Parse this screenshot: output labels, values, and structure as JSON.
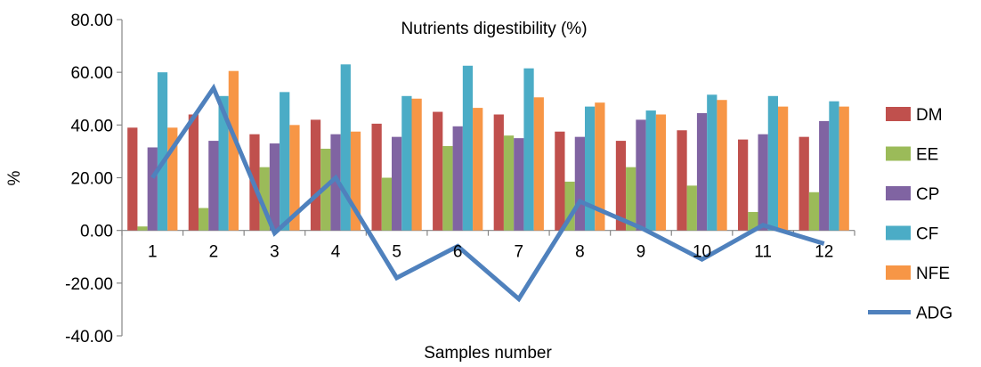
{
  "chart_data": {
    "type": "bar",
    "title": "Nutrients digestibility (%)",
    "xlabel": "Samples number",
    "ylabel": "%",
    "ylim": [
      -40,
      80
    ],
    "yticks": [
      "80.00",
      "60.00",
      "40.00",
      "20.00",
      "0.00",
      "-20.00",
      "-40.00"
    ],
    "ytick_values": [
      80,
      60,
      40,
      20,
      0,
      -20,
      -40
    ],
    "categories": [
      "1",
      "2",
      "3",
      "4",
      "5",
      "6",
      "7",
      "8",
      "9",
      "10",
      "11",
      "12"
    ],
    "grid": false,
    "legend_position": "right",
    "series": [
      {
        "name": "DM",
        "kind": "bar",
        "color": "#C0504D",
        "values": [
          39,
          44,
          36.5,
          42,
          40.5,
          45,
          44,
          37.5,
          34,
          38,
          34.5,
          35.5
        ]
      },
      {
        "name": "EE",
        "kind": "bar",
        "color": "#9BBB59",
        "values": [
          1.5,
          8.5,
          24,
          31,
          20,
          32,
          36,
          18.5,
          24,
          17,
          7,
          14.5
        ]
      },
      {
        "name": "CP",
        "kind": "bar",
        "color": "#8064A2",
        "values": [
          31.5,
          34,
          33,
          36.5,
          35.5,
          39.5,
          35,
          35.5,
          42,
          44.5,
          36.5,
          41.5
        ]
      },
      {
        "name": "CF",
        "kind": "bar",
        "color": "#4BACC6",
        "values": [
          60,
          51,
          52.5,
          63,
          51,
          62.5,
          61.5,
          47,
          45.5,
          51.5,
          51,
          49
        ]
      },
      {
        "name": "NFE",
        "kind": "bar",
        "color": "#F79646",
        "values": [
          39,
          60.5,
          40,
          37.5,
          50,
          46.5,
          50.5,
          48.5,
          44,
          49.5,
          47,
          47
        ]
      },
      {
        "name": "ADG",
        "kind": "line",
        "color": "#4F81BD",
        "values": [
          20,
          54,
          -1,
          20,
          -18,
          -6,
          -26,
          11,
          1,
          -11,
          2,
          -5
        ]
      }
    ]
  }
}
